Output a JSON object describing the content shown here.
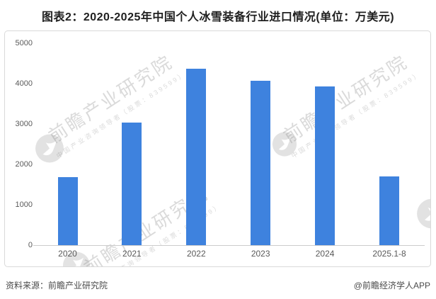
{
  "header": {
    "title": "图表2：2020-2025年中国个人冰雪装备行业进口情况(单位：万美元)"
  },
  "chart_data": {
    "type": "bar",
    "title": "图表2：2020-2025年中国个人冰雪装备行业进口情况(单位：万美元)",
    "unit": "万美元",
    "categories": [
      "2020",
      "2021",
      "2022",
      "2023",
      "2024",
      "2025.1-8"
    ],
    "values": [
      1690,
      3040,
      4360,
      4070,
      3930,
      1710
    ],
    "xlabel": "",
    "ylabel": "",
    "ylim": [
      0,
      5000
    ],
    "yticks": [
      0,
      1000,
      2000,
      3000,
      4000,
      5000
    ],
    "grid": false,
    "legend_position": "none"
  },
  "watermark": {
    "brand": "前瞻产业研究院",
    "sub": "中国产业咨询领导者（股票：839599）",
    "logo": "qianzhan-circle-logo"
  },
  "footer": {
    "source": "资料来源：前瞻产业研究院",
    "credit": "@前瞻经济学人APP"
  },
  "colors": {
    "bar": "#3E82DE",
    "axis_text": "#595959",
    "title_text": "#1F1F1F",
    "footer_text": "#4A4A4A",
    "border": "#D9D9D9",
    "baseline": "#CCCCCC",
    "watermark": "#8C8C8C"
  }
}
